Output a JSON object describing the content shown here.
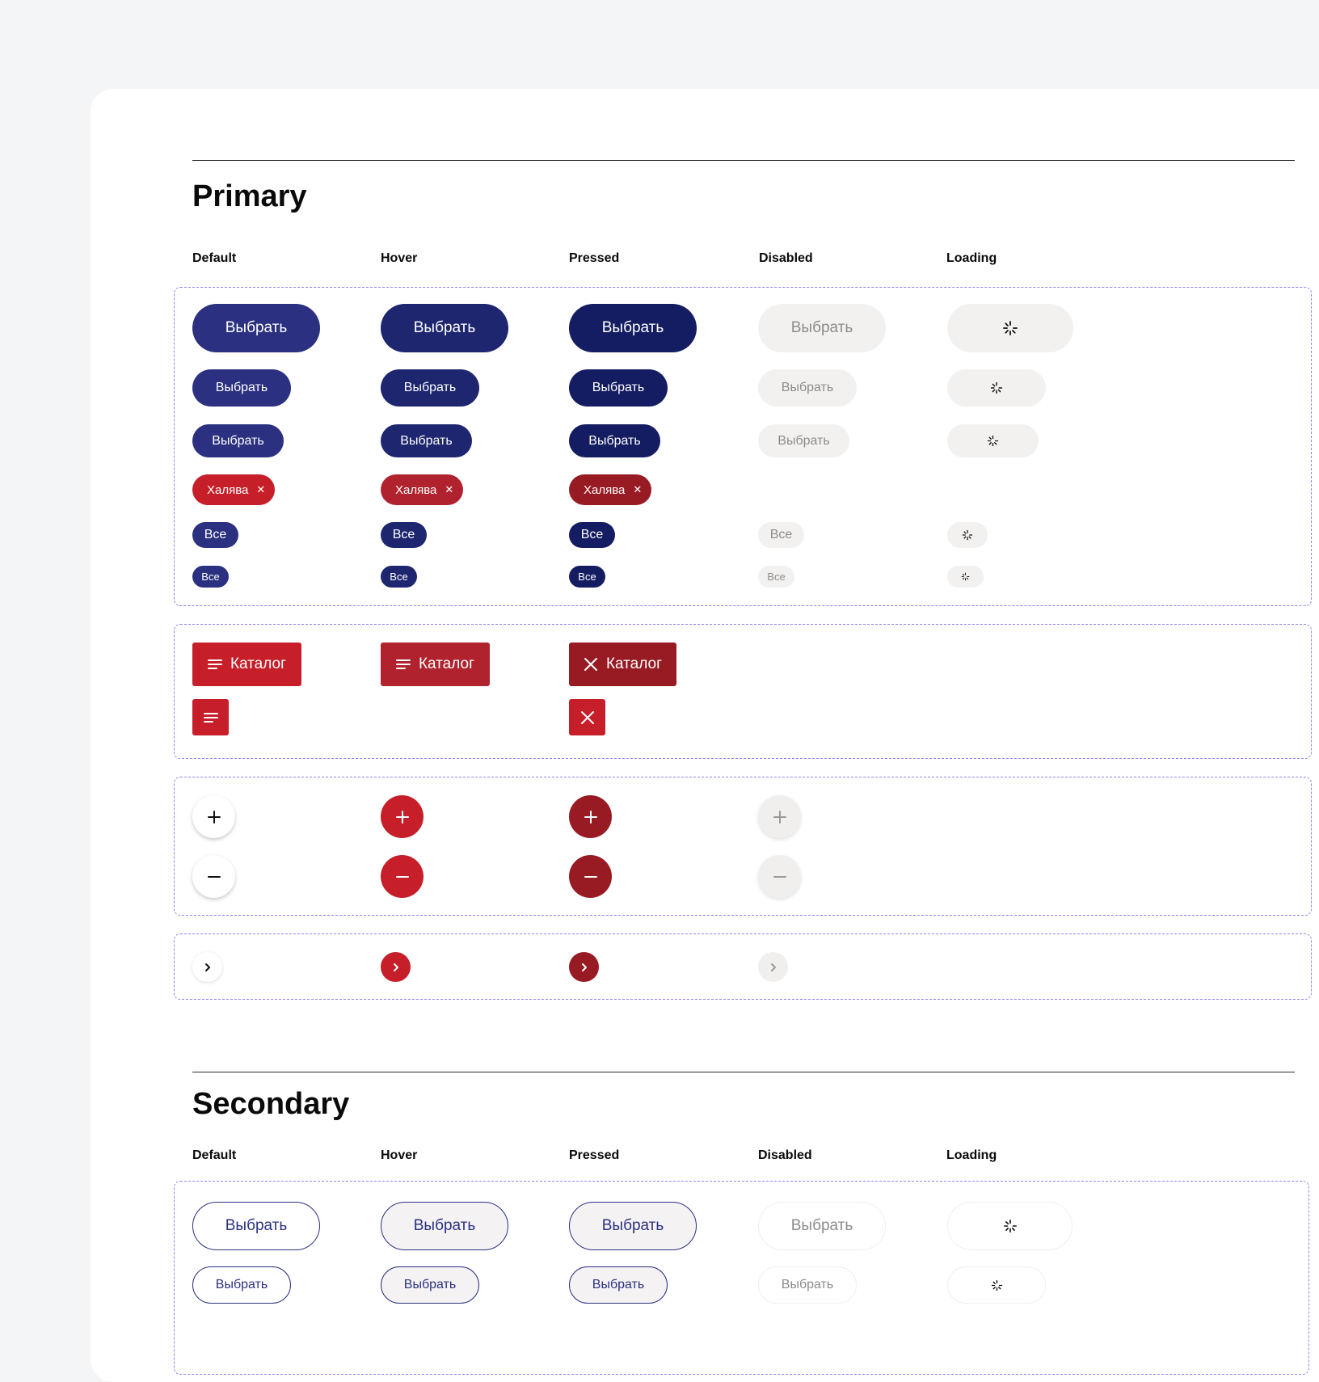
{
  "sections": {
    "primary": {
      "title": "Primary"
    },
    "secondary": {
      "title": "Secondary"
    }
  },
  "columns": [
    "Default",
    "Hover",
    "Pressed",
    "Disabled",
    "Loading"
  ],
  "buttons": {
    "select_label": "Выбрать",
    "chip_label": "Халява",
    "chip_close_icon": "close-icon",
    "all_label": "Все",
    "catalog_label": "Каталог",
    "loading_icon": "spinner-icon",
    "catalog_icon": "menu-icon",
    "catalog_pressed_icon": "close-icon",
    "plus_icon": "plus-icon",
    "minus_icon": "minus-icon",
    "arrow_icon": "chevron-right-icon"
  },
  "colors": {
    "primary_default": "#2b3180",
    "primary_hover": "#1e2670",
    "primary_pressed": "#151d62",
    "accent_default": "#c71f2a",
    "accent_hover": "#b0232e",
    "accent_pressed": "#981b24",
    "disabled_bg": "#f3f1f0",
    "disabled_text": "#8d8b8b",
    "group_border": "#8c84f5"
  }
}
